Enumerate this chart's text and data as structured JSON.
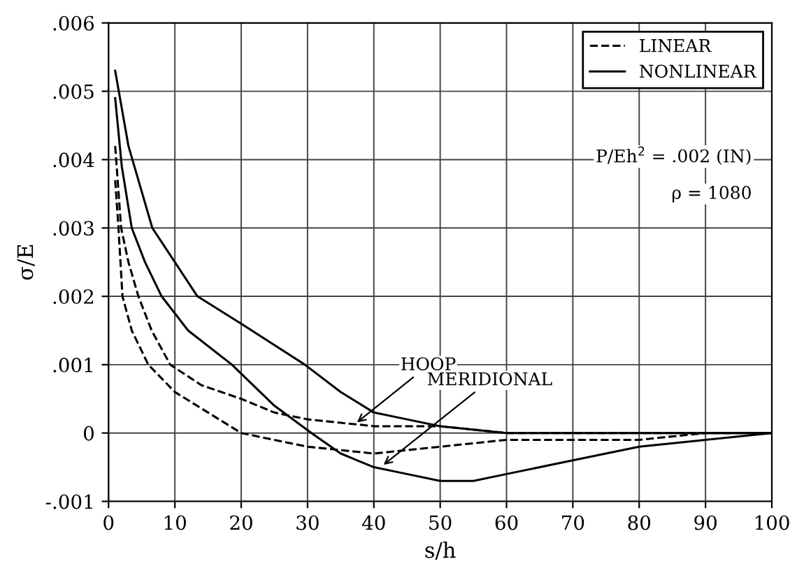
{
  "chart_data": {
    "type": "line",
    "xlabel": "s/h",
    "ylabel": "σ/E",
    "xlim": [
      0,
      100
    ],
    "xticks": [
      0,
      10,
      20,
      30,
      40,
      50,
      60,
      70,
      80,
      90,
      100
    ],
    "ylim": [
      -0.001,
      0.006
    ],
    "yticks": [
      {
        "value": -0.001,
        "label": "-.001"
      },
      0,
      {
        "value": 0.001,
        "label": ".001"
      },
      {
        "value": 0.002,
        "label": ".002"
      },
      {
        "value": 0.003,
        "label": ".003"
      },
      {
        "value": 0.004,
        "label": ".004"
      },
      {
        "value": 0.005,
        "label": ".005"
      },
      {
        "value": 0.006,
        "label": ".006"
      }
    ],
    "grid": true,
    "legend": "top right",
    "series": [
      {
        "name": "LINEAR",
        "color": "#000000",
        "line_style": "dashed",
        "x": [
          1,
          1.9,
          3,
          4.5,
          6.5,
          9.3,
          14,
          20,
          25,
          30,
          40,
          50,
          60,
          100
        ],
        "values": [
          0.0042,
          0.003,
          0.0025,
          0.002,
          0.0015,
          0.001,
          0.0007,
          0.0005,
          0.0003,
          0.0002,
          0.0001,
          0.0001,
          0,
          0
        ]
      },
      {
        "color": "#000000",
        "line_style": "dashed",
        "x": [
          1,
          1.5,
          2.1,
          3.5,
          6,
          10,
          15,
          20,
          30,
          40,
          50,
          60,
          70,
          80,
          90,
          100
        ],
        "values": [
          0.0037,
          0.003,
          0.002,
          0.0015,
          0.001,
          0.0006,
          0.0003,
          0,
          -0.0002,
          -0.0003,
          -0.0002,
          -0.0001,
          -0.0001,
          -0.0001,
          0,
          0
        ]
      },
      {
        "name": "NONLINEAR",
        "color": "#000000",
        "line_style": "solid",
        "x": [
          1,
          3,
          6.6,
          10,
          13.4,
          20,
          29.6,
          35,
          40,
          45,
          50,
          60,
          100
        ],
        "values": [
          0.0053,
          0.0042,
          0.003,
          0.0025,
          0.002,
          0.0016,
          0.001,
          0.0006,
          0.0003,
          0.0002,
          0.0001,
          0,
          0
        ]
      },
      {
        "color": "#000000",
        "line_style": "solid",
        "x": [
          1,
          2,
          3.5,
          5.5,
          8,
          12,
          18.6,
          25,
          30.6,
          35,
          40,
          45,
          50,
          55,
          60,
          70,
          80,
          90,
          100
        ],
        "values": [
          0.0049,
          0.0039,
          0.003,
          0.0025,
          0.002,
          0.0015,
          0.001,
          0.0004,
          0,
          -0.0003,
          -0.0005,
          -0.0006,
          -0.0007,
          -0.0007,
          -0.0006,
          -0.0004,
          -0.0002,
          -0.0001,
          0
        ]
      }
    ],
    "annotations": [
      {
        "text": "HOOP",
        "x": 37,
        "y": 0.00012
      },
      {
        "text": "MERIDIONAL",
        "x": 41,
        "y": -0.0005
      },
      "P/Eh$^{2}$ = .002 (IN)",
      "ρ = 1080"
    ]
  }
}
